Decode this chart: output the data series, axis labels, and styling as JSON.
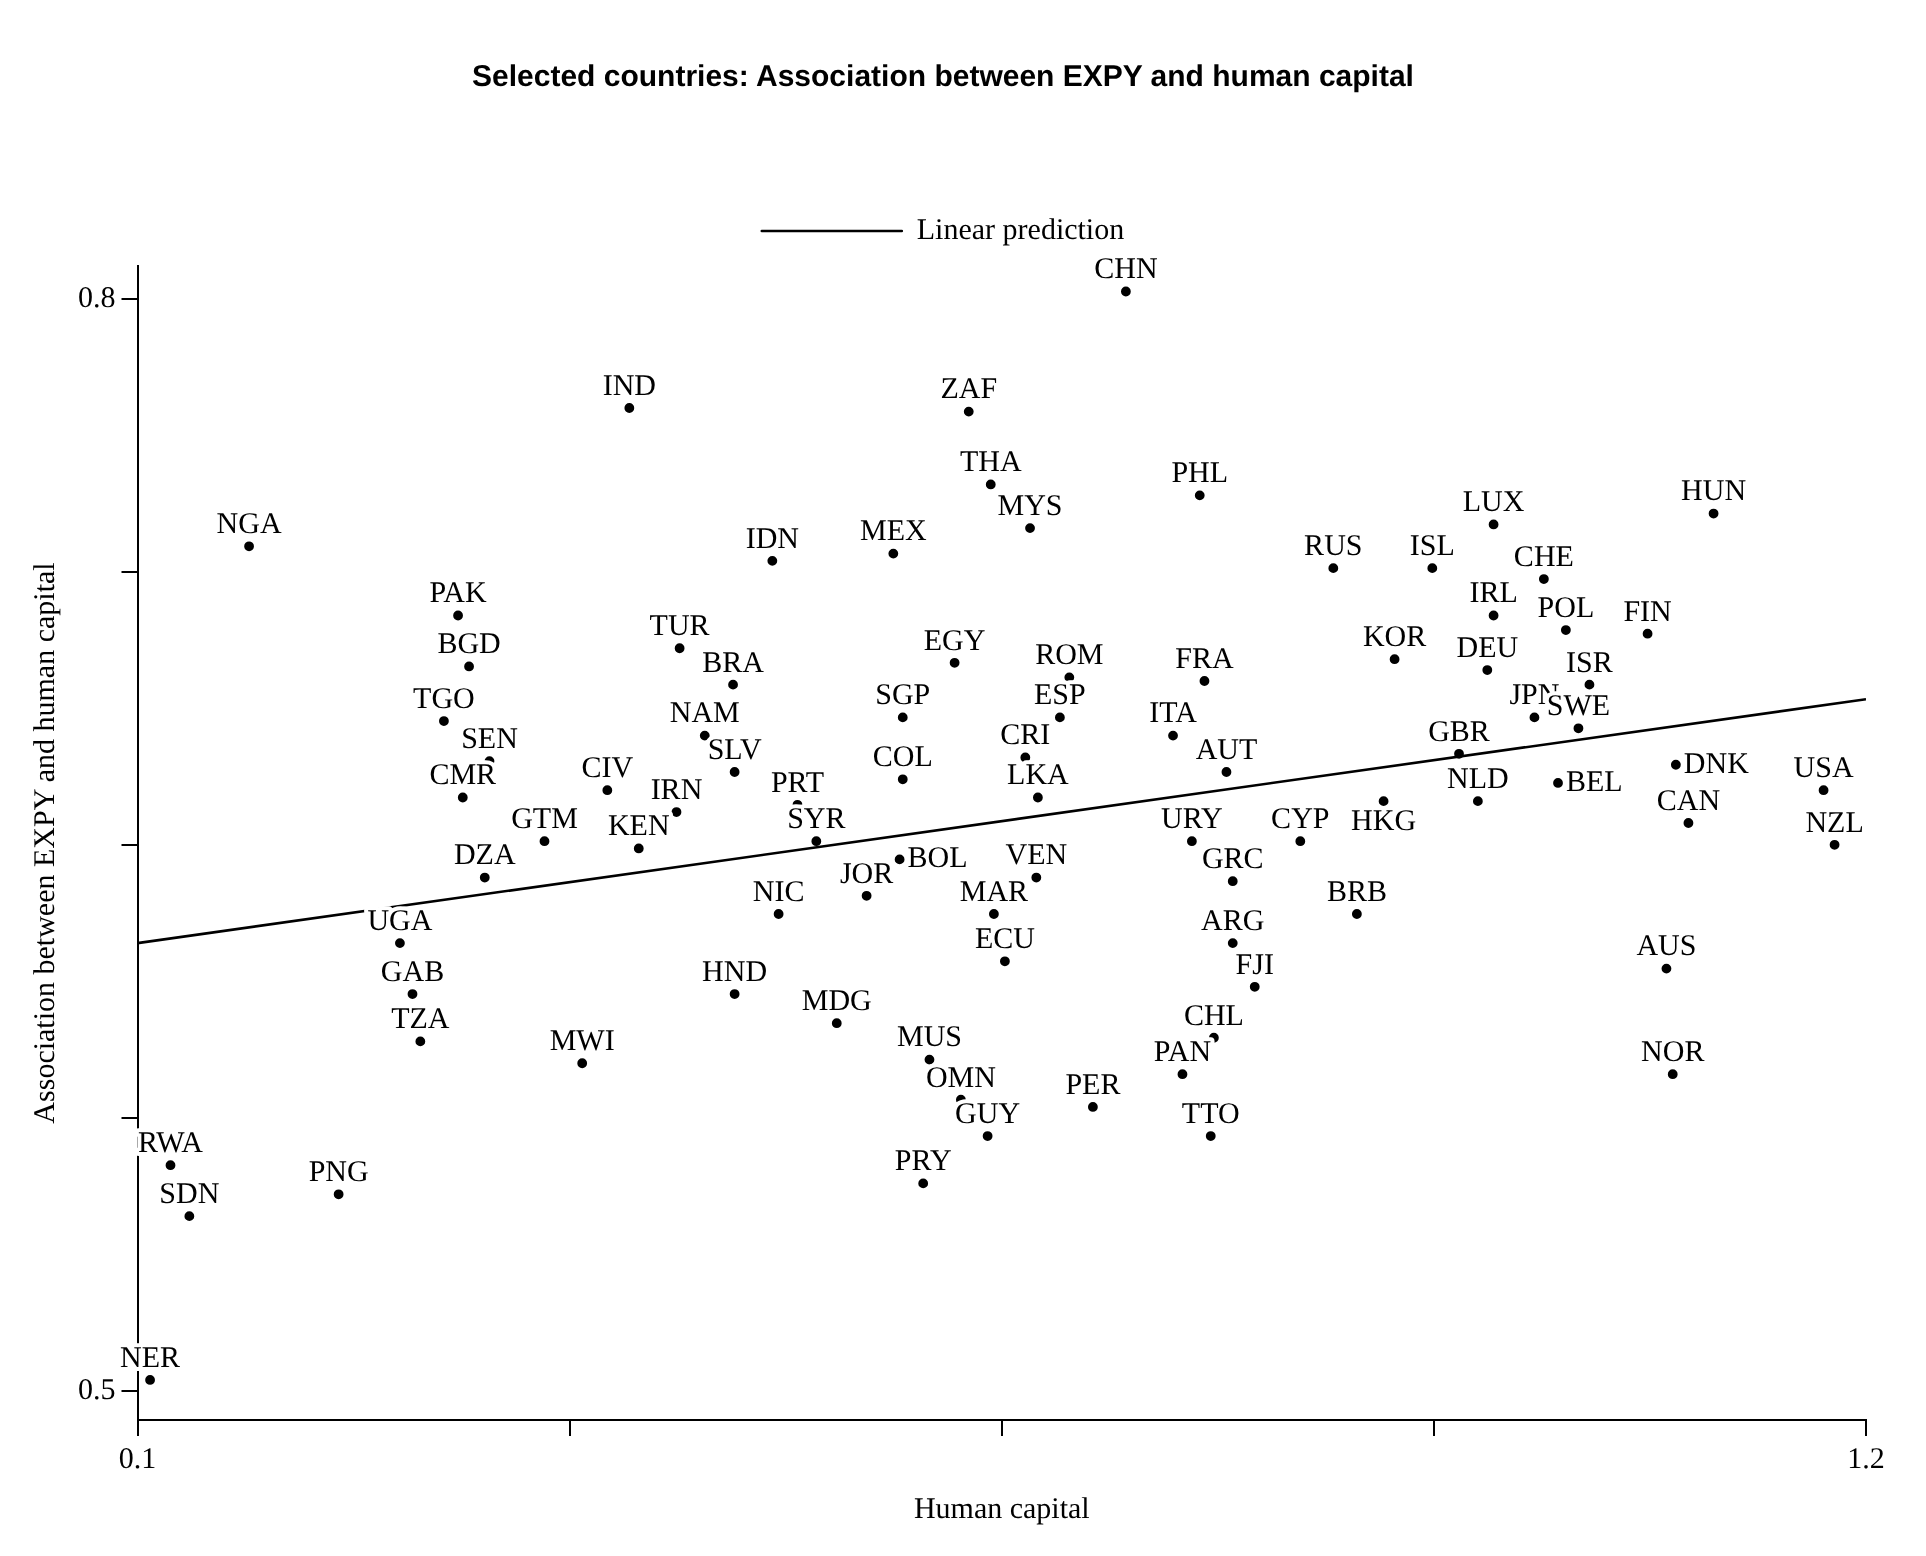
{
  "chart_data": {
    "type": "scatter",
    "title": "Selected countries: Association between EXPY and human capital",
    "xlabel": "Human capital",
    "ylabel": "Association between EXPY and human capital",
    "xlim": [
      0.1,
      1.2
    ],
    "ylim": [
      0.492,
      0.809
    ],
    "xticks": [
      0.1,
      {
        "value": 0.375,
        "label": null
      },
      {
        "value": 0.65,
        "label": null
      },
      {
        "value": 0.925,
        "label": null
      },
      1.2
    ],
    "yticks": [
      0.5,
      {
        "value": 0.575,
        "label": null
      },
      {
        "value": 0.65,
        "label": null
      },
      {
        "value": 0.725,
        "label": null
      },
      0.8
    ],
    "grid": false,
    "legend": "top",
    "series": [
      {
        "type": "scatter",
        "color": "#000000",
        "marker": "circle",
        "x": [
          0.729,
          0.413,
          0.629,
          0.643,
          0.776,
          0.668,
          0.963,
          1.103,
          0.171,
          0.581,
          0.504,
          0.861,
          0.924,
          0.995,
          0.304,
          0.963,
          1.009,
          1.061,
          0.445,
          0.311,
          0.9,
          0.959,
          0.62,
          0.693,
          0.779,
          0.479,
          1.024,
          0.295,
          0.587,
          0.687,
          0.989,
          0.461,
          0.759,
          1.017,
          0.324,
          0.665,
          0.941,
          1.079,
          0.48,
          0.793,
          0.587,
          1.004,
          1.173,
          0.307,
          0.399,
          0.893,
          0.953,
          0.52,
          0.673,
          0.443,
          1.087,
          0.532,
          0.359,
          0.419,
          0.771,
          0.84,
          1.18,
          0.585,
          0.797,
          0.672,
          0.321,
          0.564,
          0.508,
          0.645,
          0.876,
          0.267,
          0.797,
          0.652,
          1.073,
          0.811,
          0.275,
          0.48,
          0.545,
          0.785,
          0.28,
          0.383,
          0.604,
          0.765,
          1.077,
          0.624,
          0.708,
          0.641,
          0.783,
          0.121,
          0.6,
          0.228,
          0.133,
          0.108
        ],
        "values": [
          0.802,
          0.77,
          0.769,
          0.749,
          0.746,
          0.737,
          0.738,
          0.741,
          0.732,
          0.73,
          0.728,
          0.726,
          0.726,
          0.723,
          0.713,
          0.713,
          0.709,
          0.708,
          0.704,
          0.699,
          0.701,
          0.698,
          0.7,
          0.696,
          0.695,
          0.694,
          0.694,
          0.684,
          0.685,
          0.685,
          0.685,
          0.68,
          0.68,
          0.682,
          0.673,
          0.674,
          0.675,
          0.672,
          0.67,
          0.67,
          0.668,
          0.667,
          0.665,
          0.663,
          0.665,
          0.662,
          0.662,
          0.661,
          0.663,
          0.659,
          0.656,
          0.651,
          0.651,
          0.649,
          0.651,
          0.651,
          0.65,
          0.646,
          0.64,
          0.641,
          0.641,
          0.636,
          0.631,
          0.631,
          0.631,
          0.623,
          0.623,
          0.618,
          0.616,
          0.611,
          0.609,
          0.609,
          0.601,
          0.597,
          0.596,
          0.59,
          0.591,
          0.587,
          0.587,
          0.58,
          0.578,
          0.57,
          0.57,
          0.562,
          0.557,
          0.554,
          0.548,
          0.503
        ],
        "value_labels": [
          "CHN",
          "IND",
          "ZAF",
          "THA",
          "PHL",
          "MYS",
          "LUX",
          "HUN",
          "NGA",
          "MEX",
          "IDN",
          "RUS",
          "ISL",
          "CHE",
          "PAK",
          "IRL",
          "POL",
          "FIN",
          "TUR",
          "BGD",
          "KOR",
          "DEU",
          "EGY",
          "ROM",
          "FRA",
          "BRA",
          "ISR",
          "TGO",
          "SGP",
          "ESP",
          "JPN",
          "NAM",
          "ITA",
          "SWE",
          "SEN",
          "CRI",
          "GBR",
          "DNK",
          "SLV",
          "AUT",
          "COL",
          "BEL",
          "USA",
          "CMR",
          "CIV",
          "HKG",
          "NLD",
          "PRT",
          "LKA",
          "IRN",
          "CAN",
          "SYR",
          "GTM",
          "KEN",
          "URY",
          "CYP",
          "NZL",
          "BOL",
          "GRC",
          "VEN",
          "DZA",
          "JOR",
          "NIC",
          "MAR",
          "BRB",
          "UGA",
          "ARG",
          "ECU",
          "AUS",
          "FJI",
          "GAB",
          "HND",
          "MDG",
          "CHL",
          "TZA",
          "MWI",
          "MUS",
          "PAN",
          "NOR",
          "OMN",
          "PER",
          "GUY",
          "TTO",
          "RWA",
          "PRY",
          "PNG",
          "SDN",
          "NER"
        ]
      },
      {
        "type": "line",
        "name": "Linear prediction",
        "color": "#000000",
        "marker": "none",
        "x": [
          0.1,
          1.2
        ],
        "values": [
          0.623,
          0.69
        ]
      }
    ]
  }
}
